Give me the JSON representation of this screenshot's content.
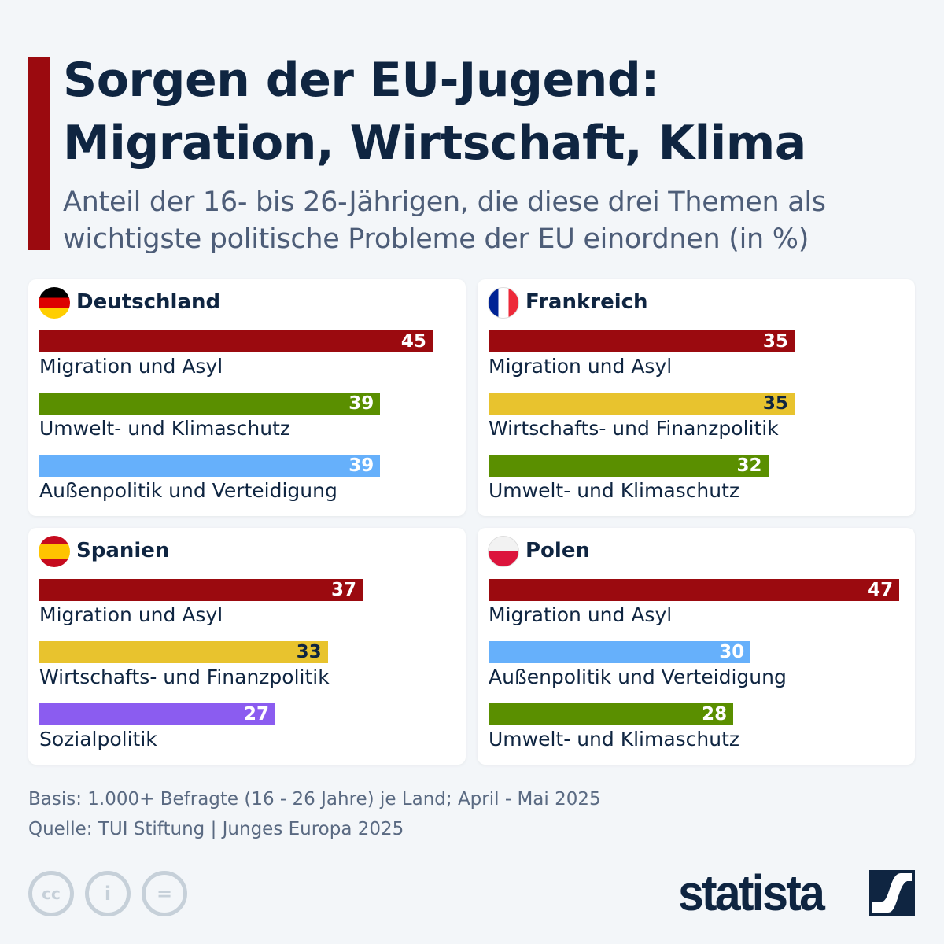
{
  "header": {
    "title_line1": "Sorgen der EU-Jugend:",
    "title_line2": "Migration, Wirtschaft, Klima",
    "subtitle": "Anteil der 16- bis 26-Jährigen, die diese drei Themen als wichtigste politische Probleme der EU einordnen (in %)"
  },
  "colors": {
    "Migration und Asyl": "#9b0a0f",
    "Umwelt- und Klimaschutz": "#5a8f00",
    "Außenpolitik und Verteidigung": "#66b0fb",
    "Wirtschafts- und Finanzpolitik": "#e8c32e",
    "Sozialpolitik": "#8b5cf0"
  },
  "chart_data": [
    {
      "type": "bar",
      "title": "Deutschland",
      "flag": "germany",
      "categories": [
        "Migration und Asyl",
        "Umwelt- und Klimaschutz",
        "Außenpolitik und Verteidigung"
      ],
      "values": [
        45,
        39,
        39
      ]
    },
    {
      "type": "bar",
      "title": "Frankreich",
      "flag": "france",
      "categories": [
        "Migration und Asyl",
        "Wirtschafts- und Finanzpolitik",
        "Umwelt- und Klimaschutz"
      ],
      "values": [
        35,
        35,
        32
      ]
    },
    {
      "type": "bar",
      "title": "Spanien",
      "flag": "spain",
      "categories": [
        "Migration und Asyl",
        "Wirtschafts- und Finanzpolitik",
        "Sozialpolitik"
      ],
      "values": [
        37,
        33,
        27
      ]
    },
    {
      "type": "bar",
      "title": "Polen",
      "flag": "poland",
      "categories": [
        "Migration und Asyl",
        "Außenpolitik und Verteidigung",
        "Umwelt- und Klimaschutz"
      ],
      "values": [
        47,
        30,
        28
      ]
    }
  ],
  "footer": {
    "basis": "Basis: 1.000+ Befragte (16 - 26 Jahre) je Land; April - Mai 2025",
    "source": "Quelle: TUI Stiftung | Junges Europa 2025"
  },
  "license_icons": [
    "cc-icon",
    "by-icon",
    "nd-icon"
  ],
  "logo": "statista"
}
